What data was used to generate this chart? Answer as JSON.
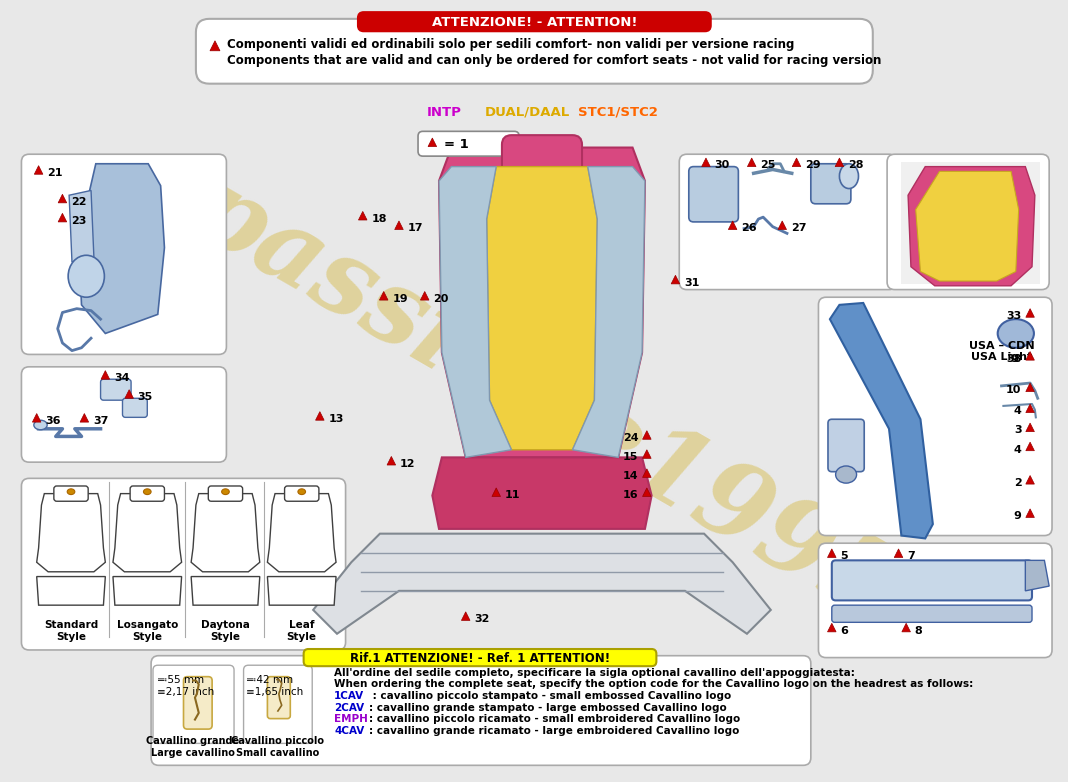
{
  "bg_color": "#e8e8e8",
  "title_text": "ATTENZIONE! - ATTENTION!",
  "title_bg": "#cc0000",
  "title_fg": "#ffffff",
  "warning_text_line1": "Componenti validi ed ordinabili solo per sedili comfort- non validi per versione racing",
  "warning_text_line2": "Components that are valid and can only be ordered for comfort seats - not valid for racing version",
  "watermark": "passione1995",
  "watermark_color": "#d4b840",
  "watermark_alpha": 0.45,
  "header_labels": [
    "INTP",
    "DUAL/DAAL",
    "STC1/STC2"
  ],
  "seat_styles": [
    "Standard\nStyle",
    "Losangato\nStyle",
    "Daytona\nStyle",
    "Leaf\nStyle"
  ],
  "ref1_title": "Rif.1 ATTENZIONE! - Ref. 1 ATTENTION!",
  "ref1_title_bg": "#ffff00",
  "ref1_line1": "All'ordine del sedile completo, specificare la sigla optional cavallino dell'appoggiatesta:",
  "ref1_line2": "When ordering the complete seat, specify the option code for the Cavallino logo on the headrest as follows:",
  "ref1_items": [
    {
      "code": "1CAV",
      "color": "#0000cc",
      "text": " : cavallino piccolo stampato - small embossed Cavallino logo"
    },
    {
      "code": "2CAV",
      "color": "#0000cc",
      "text": ": cavallino grande stampato - large embossed Cavallino logo"
    },
    {
      "code": "EMPH",
      "color": "#9900cc",
      "text": ": cavallino piccolo ricamato - small embroidered Cavallino logo"
    },
    {
      "code": "4CAV",
      "color": "#0000cc",
      "text": ": cavallino grande ricamato - large embroidered Cavallino logo"
    }
  ],
  "usa_cdn_text": "USA – CDN\nUSA Light",
  "cavallino_grande_label": "Cavallino grande\nLarge cavallino",
  "cavallino_piccolo_label": "Cavallino piccolo\nSmall cavallino",
  "size_grande": "≕55 mm\n≡2,17 inch",
  "size_piccolo": "≕42 mm\n≡1,65 inch"
}
